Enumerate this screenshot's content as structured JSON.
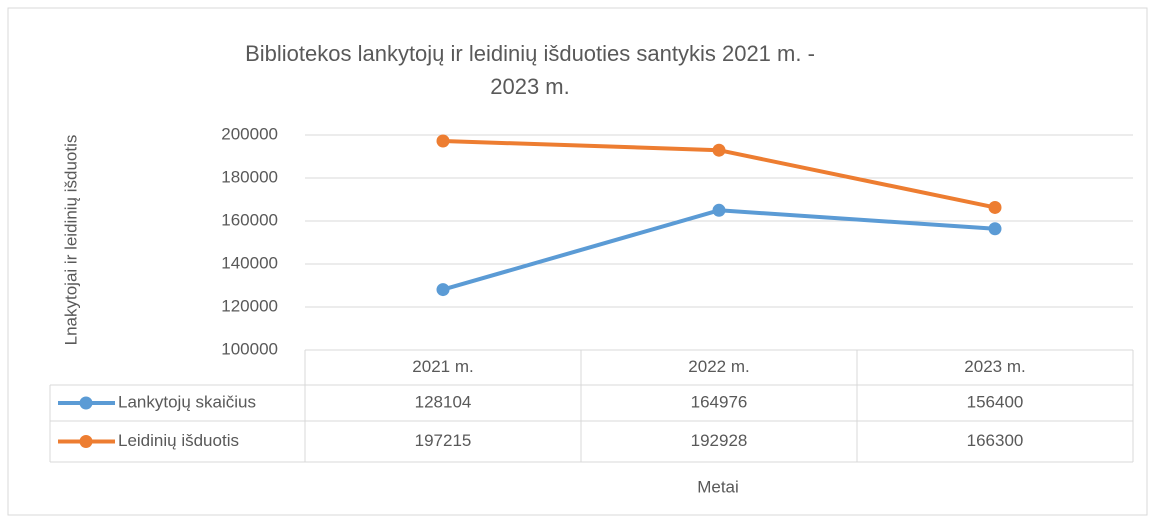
{
  "chart_data": {
    "type": "line",
    "title": [
      "Bibliotekos lankytojų ir leidinių išduoties santykis 2021 m. -",
      "2023 m."
    ],
    "y_label": "Lnakytojai ir leidinių  išduotis",
    "x_label": "Metai",
    "categories": [
      "2021 m.",
      "2022 m.",
      "2023 m."
    ],
    "series": [
      {
        "name": "Lankytojų skaičius",
        "color": "#5b9bd5",
        "values": [
          128104,
          164976,
          156400
        ]
      },
      {
        "name": "Leidinių išduotis",
        "color": "#ed7d31",
        "values": [
          197215,
          192928,
          166300
        ]
      }
    ],
    "ylim": [
      100000,
      200000
    ],
    "yticks": [
      100000,
      120000,
      140000,
      160000,
      180000,
      200000
    ],
    "grid": true,
    "data_table": true
  }
}
